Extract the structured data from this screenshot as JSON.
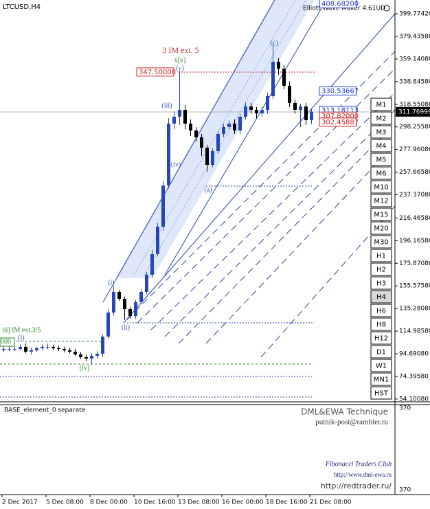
{
  "chart_data": {
    "type": "candlestick",
    "title": "LTCUSD,H4",
    "indicator": "Elliott Wave Maker 4.61UD",
    "categories": [
      "2 Dec 2017",
      null,
      null,
      null,
      null,
      null,
      null,
      null,
      "5 Dec 08:00",
      null,
      null,
      null,
      null,
      null,
      null,
      null,
      "8 Dec 00:00",
      null,
      null,
      null,
      null,
      null,
      null,
      null,
      "10 Dec 16:00",
      null,
      null,
      null,
      null,
      null,
      null,
      null,
      "13 Dec 08:00",
      null,
      null,
      null,
      null,
      null,
      null,
      null,
      "16 Dec 00:00",
      null,
      null,
      null,
      null,
      null,
      null,
      null,
      "18 Dec 16:00",
      null,
      null,
      null,
      null,
      null,
      null,
      null,
      "21 Dec 08:00"
    ],
    "open": [
      98.0,
      99.0,
      99.0,
      99.0,
      100.9,
      96.6,
      97.8,
      99.7,
      100.9,
      100.9,
      99.7,
      99.0,
      97.8,
      96.6,
      94.1,
      91.6,
      90.4,
      92.9,
      94.7,
      110.1,
      131.7,
      150.2,
      144.0,
      134.8,
      128.6,
      141.0,
      150.2,
      165.6,
      184.1,
      208.7,
      245.7,
      301.2,
      307.4,
      313.5,
      301.2,
      295.0,
      288.9,
      279.6,
      264.2,
      276.5,
      291.9,
      298.1,
      301.2,
      295.0,
      307.4,
      316.6,
      313.5,
      310.4,
      313.5,
      325.8,
      356.7,
      350.5,
      335.1,
      319.7,
      313.5,
      316.6,
      304.3
    ],
    "high": [
      101,
      102,
      101,
      103,
      104,
      100,
      101,
      103,
      104,
      103,
      102,
      101,
      100,
      99,
      96,
      94,
      95,
      97,
      112,
      135,
      155,
      152,
      146,
      137,
      143,
      153,
      168,
      188,
      212,
      250,
      306,
      312,
      348.6,
      318,
      305,
      298,
      292,
      282,
      279,
      295,
      301,
      304,
      305,
      310,
      320,
      320,
      316,
      316,
      329,
      373.9,
      360,
      354,
      339,
      323,
      319,
      320,
      315
    ],
    "low": [
      96,
      97,
      97,
      98,
      95,
      94,
      96,
      98,
      99,
      98,
      97,
      96,
      95,
      93,
      90,
      88,
      85,
      90,
      92,
      108,
      129,
      142,
      125,
      126,
      126,
      139,
      148,
      163,
      182,
      205,
      243,
      296,
      300,
      296,
      290,
      285,
      272,
      258,
      262,
      274,
      289,
      296,
      292,
      292,
      305,
      310,
      306,
      307,
      310,
      323,
      345,
      332,
      316,
      310,
      298,
      300,
      301
    ],
    "close": [
      99.0,
      99.0,
      99.0,
      100.9,
      96.6,
      97.8,
      99.7,
      100.9,
      100.9,
      99.7,
      99.0,
      97.8,
      96.6,
      94.1,
      91.6,
      90.4,
      92.9,
      94.7,
      110.1,
      131.7,
      150.2,
      144.0,
      134.8,
      128.6,
      141.0,
      150.2,
      165.6,
      184.1,
      208.7,
      245.7,
      301.2,
      307.4,
      313.5,
      301.2,
      295.0,
      288.9,
      279.6,
      264.2,
      276.5,
      291.9,
      298.1,
      301.2,
      295.0,
      307.4,
      316.6,
      313.5,
      310.4,
      313.5,
      325.8,
      356.7,
      350.5,
      335.1,
      319.7,
      313.5,
      316.6,
      304.3,
      311.8
    ],
    "up_color": "#2747b8",
    "down_color": "#000000",
    "ylim": [
      51.56,
      412.1
    ],
    "yticks": [
      {
        "value": 399.7742,
        "label": "399.77420"
      },
      {
        "value": 379.4358,
        "label": "379.43580"
      },
      {
        "value": 359.1408,
        "label": "359.14080"
      },
      {
        "value": 338.8458,
        "label": "338.84580"
      },
      {
        "value": 318.5508,
        "label": "318.55080"
      },
      {
        "value": 298.2558,
        "label": "298.25580"
      },
      {
        "value": 277.9608,
        "label": "277.96080"
      },
      {
        "value": 257.6658,
        "label": "257.66580"
      },
      {
        "value": 237.3708,
        "label": "237.37080"
      },
      {
        "value": 216.4658,
        "label": "216.46580"
      },
      {
        "value": 196.1658,
        "label": "196.16580"
      },
      {
        "value": 175.8708,
        "label": "175.87080"
      },
      {
        "value": 155.5758,
        "label": "155.57580"
      },
      {
        "value": 135.2808,
        "label": "135.28080"
      },
      {
        "value": 114.9858,
        "label": "114.98580"
      },
      {
        "value": 94.6908,
        "label": "94.69080"
      },
      {
        "value": 74.3958,
        "label": "74.39580"
      },
      {
        "value": 54.1008,
        "label": "54.10080"
      }
    ],
    "last_price": 311.76999,
    "price_labels": [
      {
        "value": 408.682,
        "label": "408.68200",
        "color": "#1f3fd0"
      },
      {
        "value": 347.5,
        "label": "347.50000",
        "color": "#d02020"
      },
      {
        "value": 330.53667,
        "label": "330.53667",
        "color": "#1f3fd0"
      },
      {
        "value": 313.18113,
        "label": "313.18113",
        "color": "#1f3fd0"
      },
      {
        "value": 307.82,
        "label": "307.82000",
        "color": "#d02020"
      },
      {
        "value": 302.45887,
        "label": "302.45887",
        "color": "#d02020"
      }
    ],
    "wave_labels": [
      {
        "text": "3 IM ext. 5",
        "color": "#c03030"
      },
      {
        "text": "x[v]",
        "color": "#2a8a2a"
      },
      {
        "text": "(v)",
        "color": "#3050c0"
      },
      {
        "text": "(iii)",
        "color": "#3050c0"
      },
      {
        "text": "(iv)",
        "color": "#3050c0"
      },
      {
        "text": "(a)",
        "color": "#3050c0"
      },
      {
        "text": "(c)",
        "color": "#3050c0"
      },
      {
        "text": "(i)",
        "color": "#3050c0"
      },
      {
        "text": "(ii)",
        "color": "#3050c0"
      },
      {
        "text": "[iv]",
        "color": "#2a8a2a"
      },
      {
        "text": "iii] IM ext.3/5",
        "color": "#2a8a2a"
      },
      {
        "text": "(i)",
        "color": "#3050c0"
      },
      {
        "text": "000",
        "color": "#2a8a2a"
      }
    ],
    "timeframes": [
      "M1",
      "M2",
      "M3",
      "M4",
      "M5",
      "M6",
      "M10",
      "M12",
      "M15",
      "M20",
      "M30",
      "H1",
      "H2",
      "H3",
      "H4",
      "H6",
      "H8",
      "H12",
      "D1",
      "W1",
      "MN1",
      "HST"
    ],
    "selected_timeframe": 14,
    "subwindow": {
      "label": "BASE_element_0 separate",
      "yticks": [
        370,
        370
      ]
    },
    "credits": [
      "DML&EWA Technique",
      "putnik-post@rambler.ru",
      "Fibonacci Traders Club",
      "http://www.dml-ewa.ru",
      "http://redtrader.ru/"
    ]
  }
}
